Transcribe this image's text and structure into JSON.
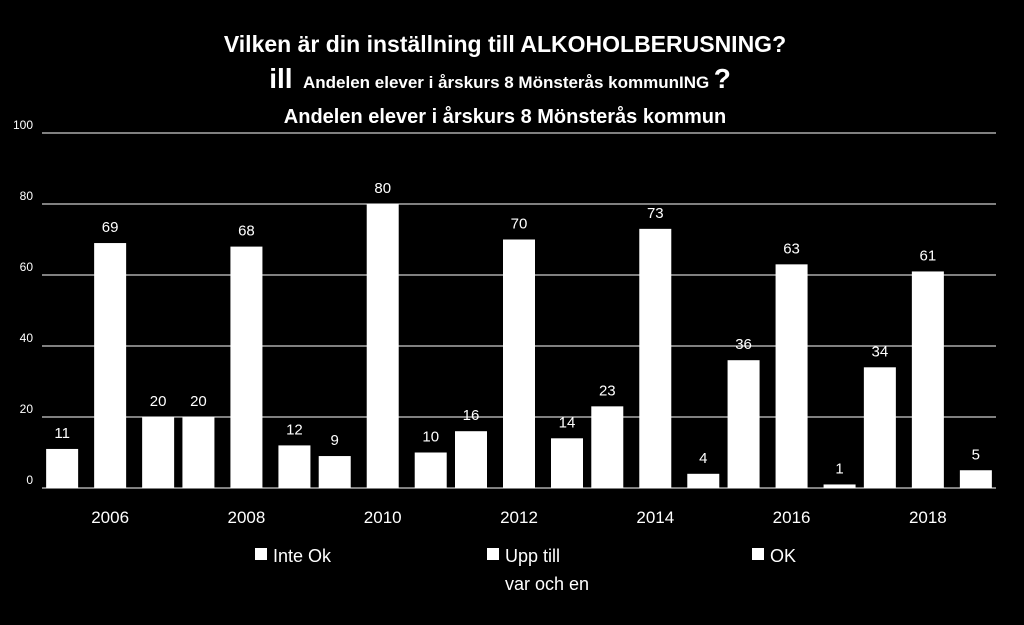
{
  "titles": {
    "line1": "Vilken är din inställning till ALKOHOLBERUSNING?",
    "line2_prefix": "ill",
    "line2_main": "Andelen elever i årskurs 8 Mönsterås kommunING",
    "line2_suffix": "?",
    "line3": "Andelen elever i årskurs 8 Mönsterås kommun"
  },
  "colors": {
    "background": "#000000",
    "bar": "#ffffff",
    "grid": "#ffffff",
    "text": "#ffffff"
  },
  "chart_data": {
    "type": "bar",
    "categories": [
      "2006",
      "2008",
      "2010",
      "2012",
      "2014",
      "2016",
      "2018"
    ],
    "series": [
      {
        "name": "Inte Ok",
        "values": [
          11,
          20,
          9,
          16,
          23,
          36,
          34
        ]
      },
      {
        "name": "Upp till var och en",
        "values": [
          69,
          68,
          80,
          70,
          73,
          63,
          61
        ]
      },
      {
        "name": "OK",
        "values": [
          20,
          12,
          10,
          14,
          4,
          1,
          5
        ]
      }
    ],
    "legend": [
      {
        "line1": "Inte Ok",
        "line2": ""
      },
      {
        "line1": "Upp till",
        "line2": "var och en"
      },
      {
        "line1": "OK",
        "line2": ""
      }
    ],
    "ylim": [
      0,
      100
    ],
    "yticks": [
      0,
      20,
      40,
      60,
      80,
      100
    ],
    "grid": true,
    "legend_position": "bottom",
    "data_labels": true
  }
}
